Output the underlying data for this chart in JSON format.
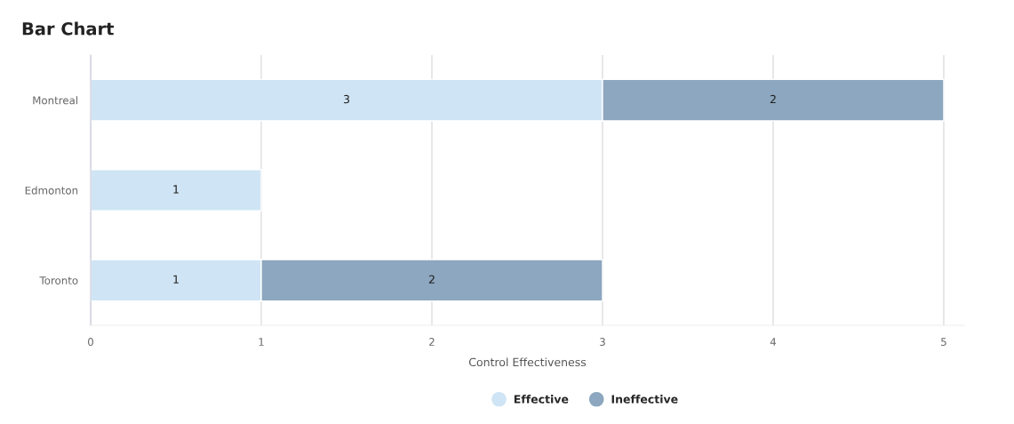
{
  "chart_data": {
    "type": "bar",
    "orientation": "horizontal",
    "stacked": true,
    "title": "Bar Chart",
    "xlabel": "Control Effectiveness",
    "categories": [
      "Montreal",
      "Edmonton",
      "Toronto"
    ],
    "series": [
      {
        "name": "Effective",
        "color": "#cfe5f5",
        "values": [
          3,
          1,
          1
        ]
      },
      {
        "name": "Ineffective",
        "color": "#8ca7bf",
        "values": [
          2,
          null,
          2
        ]
      }
    ],
    "xlim": [
      0,
      5.12
    ],
    "xticks": [
      0,
      1,
      2,
      3,
      4,
      5
    ],
    "grid": "x",
    "legend": "bottom",
    "data_labels": true
  }
}
